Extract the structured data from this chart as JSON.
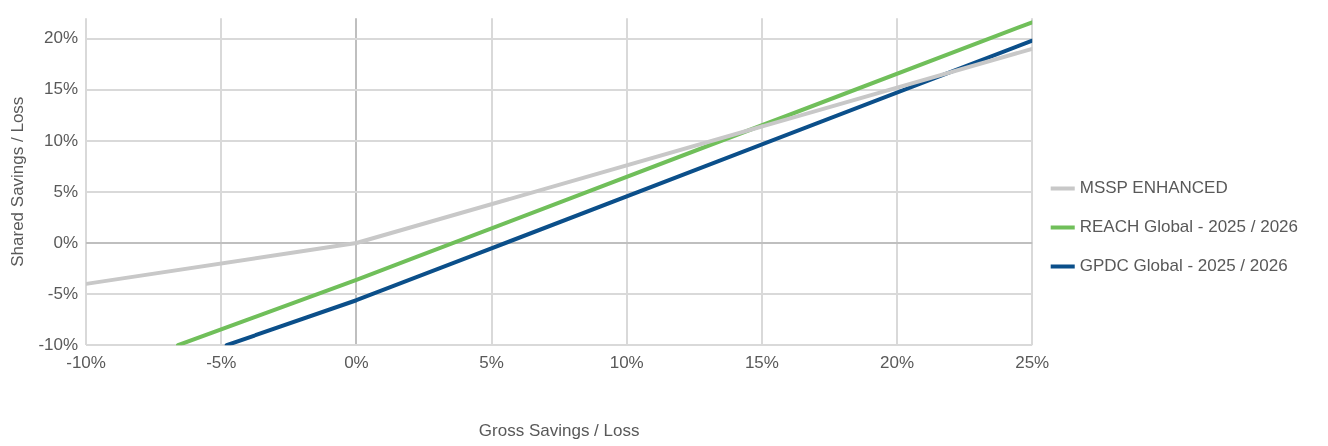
{
  "chart_data": {
    "type": "line",
    "xlabel": "Gross Savings / Loss",
    "ylabel": "Shared Savings / Loss",
    "xlim": [
      -10,
      25
    ],
    "xticks": [
      {
        "value": -10,
        "label": "-10%"
      },
      {
        "value": -5,
        "label": "-5%"
      },
      {
        "value": 0,
        "label": "0%"
      },
      {
        "value": 5,
        "label": "5%"
      },
      {
        "value": 10,
        "label": "10%"
      },
      {
        "value": 15,
        "label": "15%"
      },
      {
        "value": 20,
        "label": "20%"
      },
      {
        "value": 25,
        "label": "25%"
      }
    ],
    "ylim": [
      -10,
      22
    ],
    "yticks": [
      {
        "value": -10,
        "label": "-10%"
      },
      {
        "value": -5,
        "label": "-5%"
      },
      {
        "value": 0,
        "label": "0%"
      },
      {
        "value": 5,
        "label": "5%"
      },
      {
        "value": 10,
        "label": "10%"
      },
      {
        "value": 15,
        "label": "15%"
      },
      {
        "value": 20,
        "label": "20%"
      }
    ],
    "series": [
      {
        "name": "MSSP ENHANCED",
        "color": "#c8c8c8",
        "x": [
          -10,
          0,
          25
        ],
        "values": [
          -4,
          0,
          19
        ]
      },
      {
        "name": "REACH Global - 2025 / 2026",
        "color": "#70bf5a",
        "x": [
          -6.6,
          0,
          25
        ],
        "values": [
          -10,
          -3.6,
          21.6
        ]
      },
      {
        "name": "GPDC Global - 2025 / 2026",
        "color": "#0b4f8a",
        "x": [
          -4.8,
          0,
          25
        ],
        "values": [
          -10,
          -5.6,
          19.8
        ]
      }
    ],
    "grid": true,
    "legend": "right",
    "marker": "none",
    "line_style": "solid"
  }
}
